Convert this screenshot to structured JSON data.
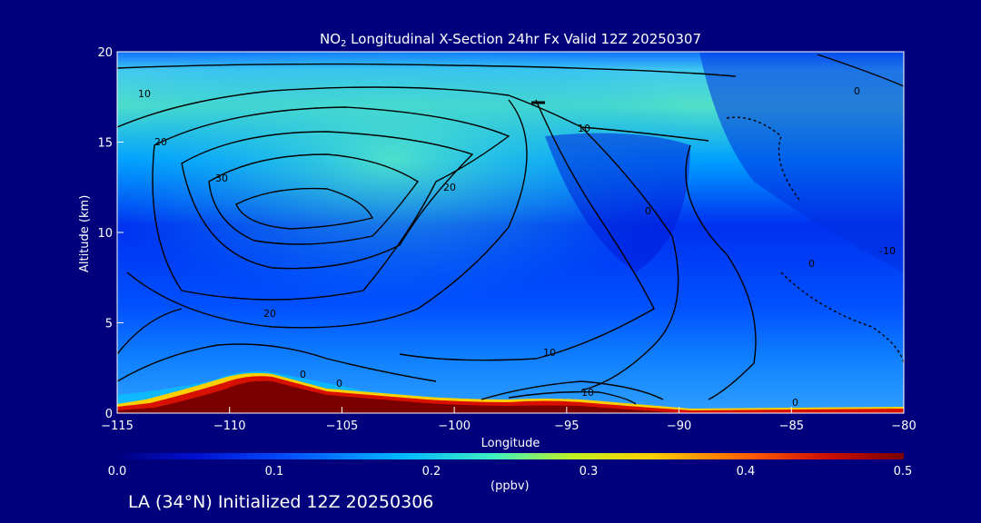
{
  "chart_data": {
    "type": "heatmap",
    "title_prefix": "NO",
    "title_sub": "2",
    "title_suffix": " Longitudinal X-Section 24hr  Fx Valid 12Z 20250307",
    "xlabel": "Longitude",
    "ylabel": "Altitude (km)",
    "xlim": [
      -115,
      -80
    ],
    "ylim": [
      0,
      20
    ],
    "xticks": [
      -115,
      -110,
      -105,
      -100,
      -95,
      -90,
      -85,
      -80
    ],
    "xtick_labels": [
      "−115",
      "−110",
      "−105",
      "−100",
      "−95",
      "−90",
      "−85",
      "−80"
    ],
    "yticks": [
      0,
      5,
      10,
      15,
      20
    ],
    "ytick_labels": [
      "0",
      "5",
      "10",
      "15",
      "20"
    ],
    "colorbar": {
      "range": [
        0.0,
        0.5
      ],
      "tick_labels": [
        "0.0",
        "0.1",
        "0.2",
        "0.3",
        "0.4",
        "0.5"
      ],
      "units": "(ppbv)",
      "colors": [
        "#0008c8",
        "#0040ff",
        "#00b0ff",
        "#30f0d0",
        "#c8f000",
        "#ffd000",
        "#ff6000",
        "#d01000",
        "#8a0000"
      ]
    },
    "contour_labels": [
      "10",
      "20",
      "30",
      "20",
      "10",
      "0",
      "0",
      "10",
      "10",
      "0",
      "0",
      "-10",
      "20",
      "0",
      "0"
    ],
    "grid": false,
    "legend": "none"
  },
  "footer": "LA (34°N) Initialized 12Z 20250306"
}
